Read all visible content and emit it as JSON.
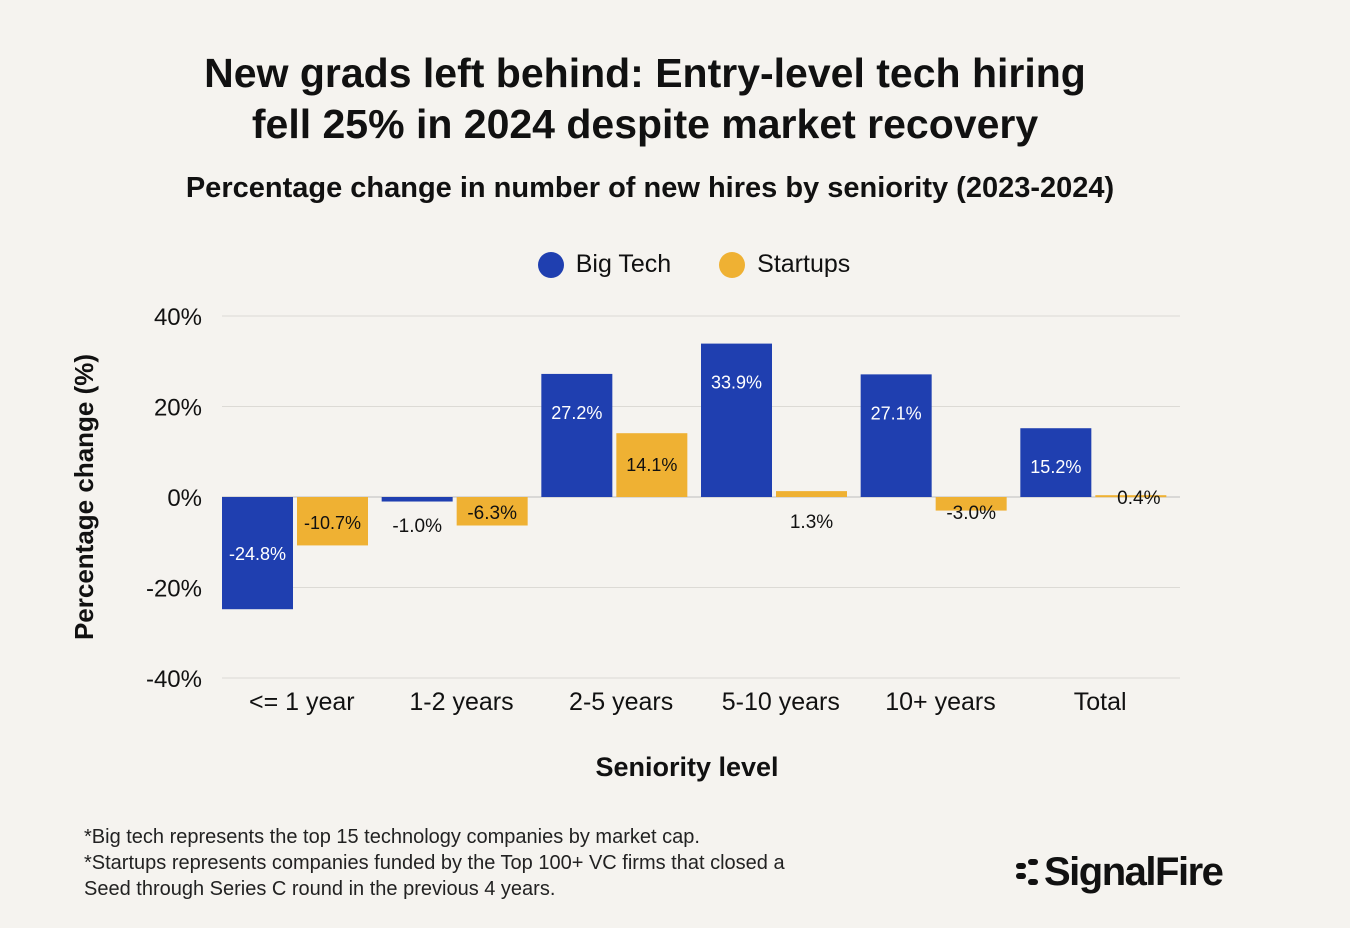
{
  "title_lines": [
    "New grads left behind: Entry-level tech hiring",
    "fell 25% in 2024 despite market recovery"
  ],
  "subtitle": "Percentage change in number of new hires by seniority (2023-2024)",
  "legend": [
    {
      "label": "Big Tech",
      "color": "#1f3fb0"
    },
    {
      "label": "Startups",
      "color": "#efb133"
    }
  ],
  "footnotes": [
    "*Big tech represents the top 15 technology companies by market cap.",
    "*Startups represents companies funded by the Top 100+ VC firms that closed a",
    "Seed through Series C round in the previous 4 years."
  ],
  "logo": {
    "text": "SignalFire",
    "icon": "signalfire-logo-icon"
  },
  "chart_data": {
    "type": "bar",
    "title": "New grads left behind: Entry-level tech hiring fell 25% in 2024 despite market recovery",
    "subtitle": "Percentage change in number of new hires by seniority (2023-2024)",
    "xlabel": "Seniority level",
    "ylabel": "Percentage change (%)",
    "categories": [
      "<= 1 year",
      "1-2 years",
      "2-5 years",
      "5-10 years",
      "10+ years",
      "Total"
    ],
    "series": [
      {
        "name": "Big Tech",
        "color": "#1f3fb0",
        "values": [
          -24.8,
          -1.0,
          27.2,
          33.9,
          27.1,
          15.2
        ],
        "labels": [
          "-24.8%",
          "-1.0%",
          "27.2%",
          "33.9%",
          "27.1%",
          "15.2%"
        ]
      },
      {
        "name": "Startups",
        "color": "#efb133",
        "values": [
          -10.7,
          -6.3,
          14.1,
          1.3,
          -3.0,
          0.4
        ],
        "labels": [
          "-10.7%",
          "-6.3%",
          "14.1%",
          "1.3%",
          "-3.0%",
          "0.4%"
        ]
      }
    ],
    "ylim": [
      -40,
      40
    ],
    "yticks": [
      40,
      20,
      0,
      -20,
      -40
    ],
    "ytick_labels": [
      "40%",
      "20%",
      "0%",
      "-20%",
      "-40%"
    ],
    "grid": true,
    "legend_position": "top-center"
  }
}
